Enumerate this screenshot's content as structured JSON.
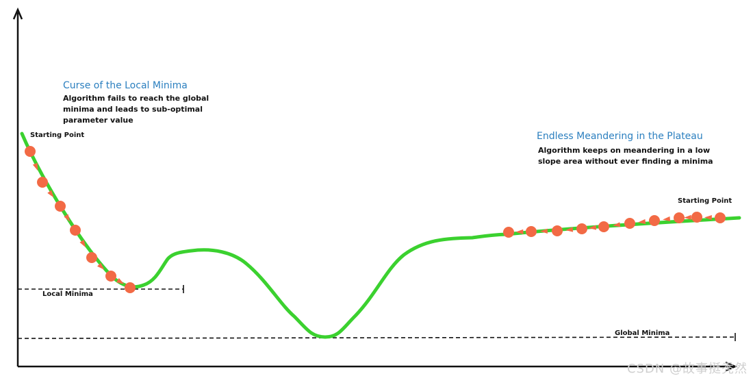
{
  "annotations": {
    "local_title": "Curse of the Local Minima",
    "local_desc": "Algorithm fails to reach the global\nminima and leads to sub-optimal\nparameter value",
    "plateau_title": "Endless Meandering in the Plateau",
    "plateau_desc": "Algorithm keeps on meandering in a low\nslope area without ever finding a minima"
  },
  "labels": {
    "start_left": "Starting Point",
    "start_right": "Starting Point",
    "local_minima": "Local Minima",
    "global_minima": "Global Minima"
  },
  "watermark": "CSDN @故事挺秃然",
  "colors": {
    "curve": "#3bd12f",
    "point": "#f26a45",
    "title": "#2b7fbf",
    "axis": "#111111"
  }
}
